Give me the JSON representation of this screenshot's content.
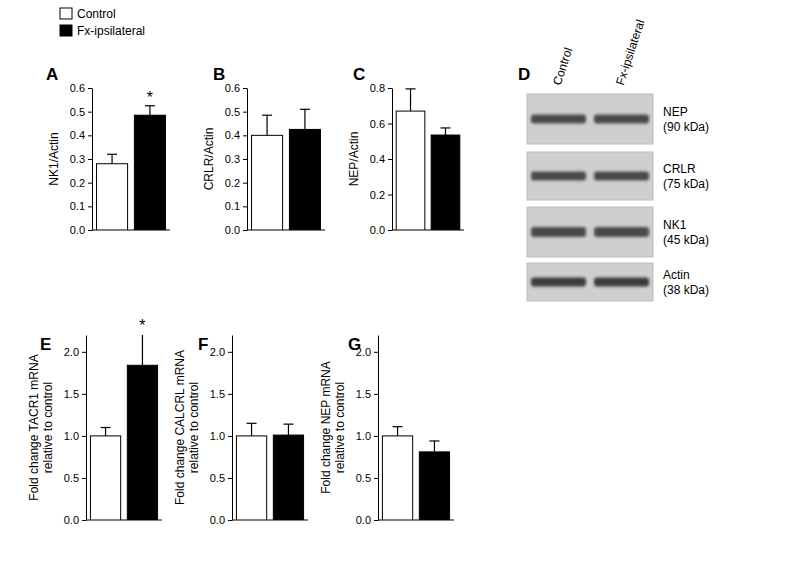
{
  "chart_data": [
    {
      "type": "bar",
      "title": "A",
      "ylabel": [
        "NK1/Actin"
      ],
      "ylim": [
        0,
        0.6
      ],
      "yticks": [
        {
          "value": 0,
          "label": "0.0"
        },
        0.1,
        0.2,
        0.3,
        0.4,
        0.5,
        0.6
      ],
      "legend": "top-left",
      "series": [
        {
          "name": "Control",
          "color": "#ffffff",
          "values": [
            0.28
          ],
          "error": [
            0.04
          ]
        },
        {
          "name": "Fx-ipsilateral",
          "color": "#000000",
          "values": [
            0.485
          ],
          "error": [
            0.04
          ],
          "annotation": "*"
        }
      ]
    },
    {
      "type": "bar",
      "title": "B",
      "ylabel": [
        "CRLR/Actin"
      ],
      "ylim": [
        0,
        0.6
      ],
      "yticks": [
        {
          "value": 0,
          "label": "0.0"
        },
        0.1,
        0.2,
        0.3,
        0.4,
        0.5,
        0.6
      ],
      "series": [
        {
          "color": "#ffffff",
          "values": [
            0.4
          ],
          "error": [
            0.085
          ]
        },
        {
          "color": "#000000",
          "values": [
            0.425
          ],
          "error": [
            0.085
          ]
        }
      ]
    },
    {
      "type": "bar",
      "title": "C",
      "ylabel": [
        "NEP/Actin"
      ],
      "ylim": [
        0,
        0.8
      ],
      "yticks": [
        {
          "value": 0,
          "label": "0.0"
        },
        0.2,
        0.4,
        0.6,
        0.8
      ],
      "series": [
        {
          "color": "#ffffff",
          "values": [
            0.67
          ],
          "error": [
            0.125
          ]
        },
        {
          "color": "#000000",
          "values": [
            0.535
          ],
          "error": [
            0.04
          ]
        }
      ]
    },
    {
      "type": "bar",
      "title": "E",
      "ylabel": [
        "Fold change TACR1 mRNA",
        "relative to control"
      ],
      "ylim": [
        0,
        2.2
      ],
      "yticks": [
        {
          "value": 0,
          "label": "0.0"
        },
        0.5,
        {
          "value": 1,
          "label": "1.0"
        },
        1.5,
        {
          "value": 2,
          "label": "2.0"
        }
      ],
      "series": [
        {
          "color": "#ffffff",
          "values": [
            1.0
          ],
          "error": [
            0.1
          ]
        },
        {
          "color": "#000000",
          "values": [
            1.84
          ],
          "error": [
            0.37
          ],
          "annotation": "*"
        }
      ]
    },
    {
      "type": "bar",
      "title": "F",
      "ylabel": [
        "Fold change CALCRL mRNA",
        "relative to control"
      ],
      "ylim": [
        0,
        2.2
      ],
      "yticks": [
        {
          "value": 0,
          "label": "0.0"
        },
        0.5,
        {
          "value": 1,
          "label": "1.0"
        },
        1.5,
        {
          "value": 2,
          "label": "2.0"
        }
      ],
      "series": [
        {
          "color": "#ffffff",
          "values": [
            1.0
          ],
          "error": [
            0.15
          ]
        },
        {
          "color": "#000000",
          "values": [
            1.01
          ],
          "error": [
            0.13
          ]
        }
      ]
    },
    {
      "type": "bar",
      "title": "G",
      "ylabel": [
        "Fold change NEP mRNA",
        "relative to control"
      ],
      "ylim": [
        0,
        2.2
      ],
      "yticks": [
        {
          "value": 0,
          "label": "0.0"
        },
        0.5,
        {
          "value": 1,
          "label": "1.0"
        },
        1.5,
        {
          "value": 2,
          "label": "2.0"
        }
      ],
      "series": [
        {
          "color": "#ffffff",
          "values": [
            1.0
          ],
          "error": [
            0.11
          ]
        },
        {
          "color": "#000000",
          "values": [
            0.81
          ],
          "error": [
            0.13
          ]
        }
      ]
    }
  ],
  "blot": {
    "title": "D",
    "lanes": [
      "Control",
      "Fx-ipsilateral"
    ],
    "proteins": [
      {
        "name": "NEP",
        "size": "(90 kDa)"
      },
      {
        "name": "CRLR",
        "size": "(75 kDa)"
      },
      {
        "name": "NK1",
        "size": "(45 kDa)"
      },
      {
        "name": "Actin",
        "size": "(38 kDa)"
      }
    ]
  }
}
